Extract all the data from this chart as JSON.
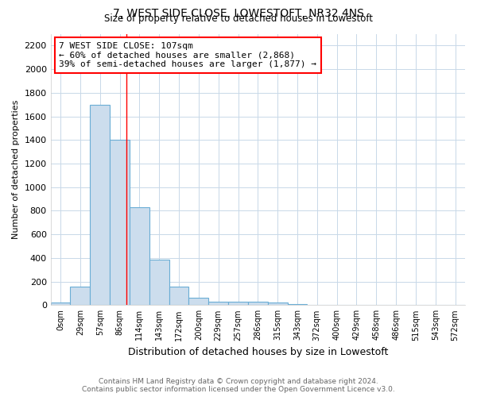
{
  "title": "7, WEST SIDE CLOSE, LOWESTOFT, NR32 4NS",
  "subtitle": "Size of property relative to detached houses in Lowestoft",
  "xlabel": "Distribution of detached houses by size in Lowestoft",
  "ylabel": "Number of detached properties",
  "bar_labels": [
    "0sqm",
    "29sqm",
    "57sqm",
    "86sqm",
    "114sqm",
    "143sqm",
    "172sqm",
    "200sqm",
    "229sqm",
    "257sqm",
    "286sqm",
    "315sqm",
    "343sqm",
    "372sqm",
    "400sqm",
    "429sqm",
    "458sqm",
    "486sqm",
    "515sqm",
    "543sqm",
    "572sqm"
  ],
  "bar_values": [
    20,
    155,
    1700,
    1400,
    830,
    385,
    160,
    65,
    30,
    30,
    30,
    20,
    10,
    5,
    0,
    0,
    0,
    0,
    0,
    0,
    0
  ],
  "bar_color": "#ccdded",
  "bar_edge_color": "#6aadd5",
  "red_line_x": 3.86,
  "annotation_line1": "7 WEST SIDE CLOSE: 107sqm",
  "annotation_line2": "← 60% of detached houses are smaller (2,868)",
  "annotation_line3": "39% of semi-detached houses are larger (1,877) →",
  "annotation_box_color": "white",
  "annotation_box_edge_color": "red",
  "ylim": [
    0,
    2300
  ],
  "yticks": [
    0,
    200,
    400,
    600,
    800,
    1000,
    1200,
    1400,
    1600,
    1800,
    2000,
    2200
  ],
  "grid_color": "#c8d8e8",
  "footer_line1": "Contains HM Land Registry data © Crown copyright and database right 2024.",
  "footer_line2": "Contains public sector information licensed under the Open Government Licence v3.0.",
  "bg_color": "#ffffff",
  "plot_bg_color": "#ffffff"
}
